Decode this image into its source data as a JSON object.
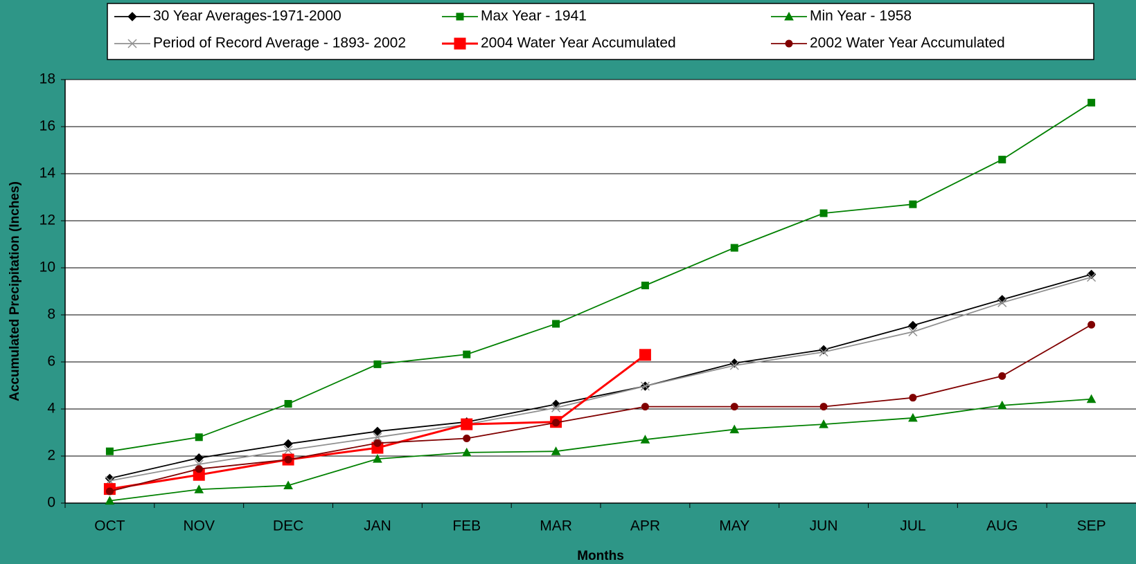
{
  "chart_data": {
    "type": "line",
    "x_label": "Months",
    "y_label": "Accumulated Precipitation (Inches)",
    "categories": [
      "OCT",
      "NOV",
      "DEC",
      "JAN",
      "FEB",
      "MAR",
      "APR",
      "MAY",
      "JUN",
      "JUL",
      "AUG",
      "SEP"
    ],
    "ylim": [
      0,
      18
    ],
    "yticks": [
      0,
      2,
      4,
      6,
      8,
      10,
      12,
      14,
      16,
      18
    ],
    "grid": true,
    "legend": "top",
    "series": [
      {
        "name": "30 Year Averages-1971-2000",
        "color": "#000000",
        "marker": "diamond",
        "values": [
          1.05,
          1.92,
          2.52,
          3.05,
          3.45,
          4.2,
          4.97,
          5.95,
          6.52,
          7.55,
          8.65,
          9.72
        ]
      },
      {
        "name": "Max Year - 1941",
        "color": "#008000",
        "marker": "square",
        "values": [
          2.2,
          2.8,
          4.22,
          5.9,
          6.32,
          7.62,
          9.25,
          10.85,
          12.32,
          12.7,
          14.6,
          17.02
        ]
      },
      {
        "name": "Min Year - 1958",
        "color": "#008000",
        "marker": "triangle",
        "values": [
          0.1,
          0.58,
          0.75,
          1.88,
          2.15,
          2.2,
          2.7,
          3.13,
          3.35,
          3.62,
          4.15,
          4.42
        ]
      },
      {
        "name": "Period of Record Average - 1893- 2002",
        "color": "#909090",
        "marker": "x",
        "values": [
          0.95,
          1.65,
          2.25,
          2.8,
          3.35,
          4.05,
          4.97,
          5.85,
          6.42,
          7.28,
          8.52,
          9.6
        ]
      },
      {
        "name": "2004 Water Year Accumulated",
        "color": "#ff0000",
        "marker": "bigsquare",
        "values": [
          0.6,
          1.2,
          1.85,
          2.35,
          3.35,
          3.45,
          6.3,
          null,
          null,
          null,
          null,
          null
        ]
      },
      {
        "name": "2002 Water Year Accumulated",
        "color": "#800000",
        "marker": "circle",
        "values": [
          0.5,
          1.45,
          1.85,
          2.55,
          2.75,
          3.42,
          4.1,
          4.1,
          4.1,
          4.48,
          5.4,
          7.58
        ]
      }
    ]
  }
}
